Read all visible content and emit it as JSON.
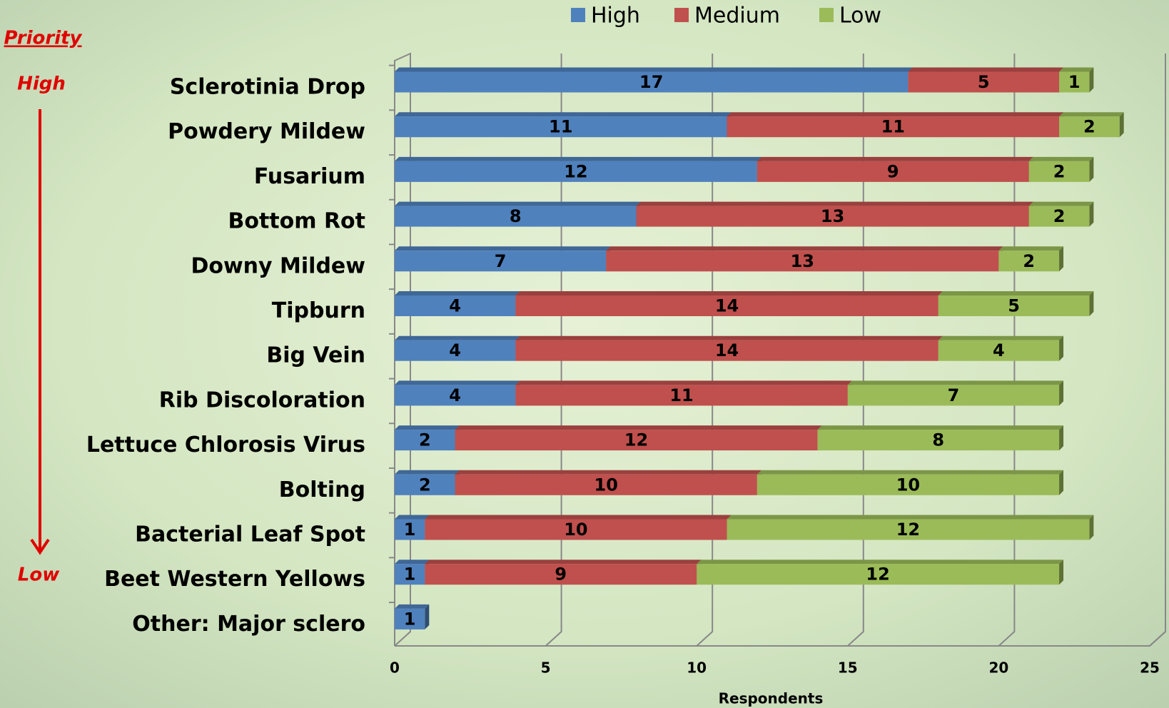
{
  "chart_data": {
    "type": "stacked-bar",
    "orientation": "horizontal",
    "x_label": "Respondents",
    "annotations": {
      "priority": "Priority",
      "high": "High",
      "low": "Low"
    },
    "categories": [
      "Sclerotinia Drop",
      "Powdery Mildew",
      "Fusarium",
      "Bottom Rot",
      "Downy Mildew",
      "Tipburn",
      "Big Vein",
      "Rib Discoloration",
      "Lettuce Chlorosis Virus",
      "Bolting",
      "Bacterial Leaf Spot",
      "Beet Western Yellows",
      "Other: Major sclero"
    ],
    "series": [
      {
        "name": "High",
        "color": "#4f81bd",
        "values": [
          17,
          11,
          12,
          8,
          7,
          4,
          4,
          4,
          2,
          2,
          1,
          1,
          1
        ]
      },
      {
        "name": "Medium",
        "color": "#c0504d",
        "values": [
          5,
          11,
          9,
          13,
          13,
          14,
          14,
          11,
          12,
          10,
          10,
          9,
          null
        ]
      },
      {
        "name": "Low",
        "color": "#9bbb59",
        "values": [
          1,
          2,
          2,
          2,
          2,
          5,
          4,
          7,
          8,
          10,
          12,
          12,
          null
        ]
      }
    ],
    "xlim": [
      0,
      25
    ],
    "xticks": [
      0,
      5,
      10,
      15,
      20,
      25
    ],
    "grid": true,
    "legend": "top"
  }
}
